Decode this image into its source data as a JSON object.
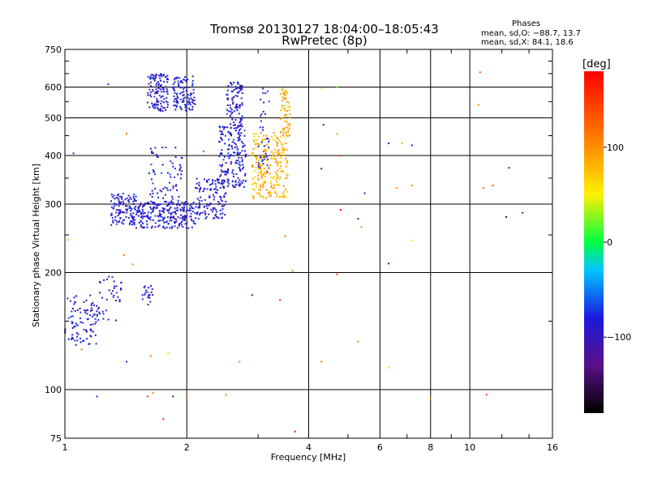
{
  "header": {
    "title_line1": "Tromsø 20130127 18:04:00–18:05:43",
    "title_line2": "RwPretec (8p)",
    "phases_heading": "Phases",
    "phases_o": "mean, sd,O: −88.7, 13.7",
    "phases_x": "mean, sd,X:  84.1, 18.6"
  },
  "chart_data": {
    "type": "scatter",
    "title": "Tromsø 20130127 18:04:00–18:05:43",
    "subtitle": "RwPretec (8p)",
    "xlabel": "Frequency [MHz]",
    "ylabel": "Stationary phase Virtual Height [km]",
    "xscale": "log",
    "yscale": "log",
    "xlim": [
      1,
      16
    ],
    "ylim": [
      75,
      750
    ],
    "xticks": [
      1,
      2,
      4,
      6,
      8,
      10,
      16
    ],
    "xtick_labels": [
      "1",
      "2",
      "4",
      "6",
      "8",
      "10",
      "16"
    ],
    "yticks": [
      75,
      100,
      200,
      300,
      400,
      500,
      600,
      750
    ],
    "ytick_labels": [
      "75",
      "100",
      "200",
      "300",
      "400",
      "500",
      "600",
      "750"
    ],
    "grid": true,
    "colorbar": {
      "label": "[deg]",
      "range": [
        -180,
        180
      ],
      "ticks": [
        100,
        0,
        -100
      ],
      "tick_labels": [
        "100",
        "0",
        "−100"
      ]
    },
    "series": [
      {
        "name": "O",
        "phase": -88.7,
        "color": "#1f4fe0",
        "clusters": [
          {
            "f": [
              1.0,
              1.2
            ],
            "h": [
              130,
              175
            ],
            "count": 90
          },
          {
            "f": [
              1.2,
              1.38
            ],
            "h": [
              150,
              200
            ],
            "count": 40
          },
          {
            "f": [
              1.3,
              1.5
            ],
            "h": [
              265,
              320
            ],
            "count": 120
          },
          {
            "f": [
              1.5,
              2.1
            ],
            "h": [
              260,
              305
            ],
            "count": 240
          },
          {
            "f": [
              2.1,
              2.5
            ],
            "h": [
              275,
              350
            ],
            "count": 130
          },
          {
            "f": [
              2.4,
              2.8
            ],
            "h": [
              330,
              480
            ],
            "count": 180
          },
          {
            "f": [
              2.5,
              2.75
            ],
            "h": [
              470,
              620
            ],
            "count": 90
          },
          {
            "f": [
              1.6,
              1.8
            ],
            "h": [
              520,
              650
            ],
            "count": 120
          },
          {
            "f": [
              1.85,
              2.1
            ],
            "h": [
              520,
              640
            ],
            "count": 110
          },
          {
            "f": [
              1.6,
              1.95
            ],
            "h": [
              300,
              420
            ],
            "count": 70
          },
          {
            "f": [
              1.55,
              1.65
            ],
            "h": [
              165,
              185
            ],
            "count": 20
          },
          {
            "f": [
              3.0,
              3.2
            ],
            "h": [
              360,
              600
            ],
            "count": 40
          }
        ]
      },
      {
        "name": "X",
        "phase": 84.1,
        "color": "#d8e000",
        "clusters": [
          {
            "f": [
              2.9,
              3.55
            ],
            "h": [
              310,
              460
            ],
            "count": 230
          },
          {
            "f": [
              3.4,
              3.6
            ],
            "h": [
              450,
              600
            ],
            "count": 60
          }
        ]
      }
    ],
    "scattered_points": [
      {
        "f": 1.28,
        "h": 610,
        "phase": -100
      },
      {
        "f": 1.05,
        "h": 405,
        "phase": -100
      },
      {
        "f": 1.42,
        "h": 455,
        "phase": 120
      },
      {
        "f": 2.2,
        "h": 410,
        "phase": 140
      },
      {
        "f": 4.3,
        "h": 595,
        "phase": 40
      },
      {
        "f": 4.7,
        "h": 600,
        "phase": 20
      },
      {
        "f": 4.35,
        "h": 480,
        "phase": -100
      },
      {
        "f": 4.7,
        "h": 455,
        "phase": 20
      },
      {
        "f": 4.8,
        "h": 400,
        "phase": 140
      },
      {
        "f": 4.3,
        "h": 370,
        "phase": -110
      },
      {
        "f": 6.3,
        "h": 430,
        "phase": -100
      },
      {
        "f": 6.8,
        "h": 430,
        "phase": 20
      },
      {
        "f": 7.2,
        "h": 425,
        "phase": -100
      },
      {
        "f": 5.5,
        "h": 320,
        "phase": -100
      },
      {
        "f": 6.6,
        "h": 330,
        "phase": 100
      },
      {
        "f": 7.2,
        "h": 335,
        "phase": 100
      },
      {
        "f": 4.8,
        "h": 290,
        "phase": 170
      },
      {
        "f": 5.3,
        "h": 275,
        "phase": -100
      },
      {
        "f": 5.4,
        "h": 262,
        "phase": 100
      },
      {
        "f": 7.2,
        "h": 242,
        "phase": 40
      },
      {
        "f": 6.3,
        "h": 211,
        "phase": -130
      },
      {
        "f": 4.7,
        "h": 198,
        "phase": 140
      },
      {
        "f": 3.5,
        "h": 248,
        "phase": 120
      },
      {
        "f": 3.65,
        "h": 202,
        "phase": 110
      },
      {
        "f": 2.9,
        "h": 175,
        "phase": -120
      },
      {
        "f": 3.4,
        "h": 170,
        "phase": 160
      },
      {
        "f": 5.3,
        "h": 133,
        "phase": 110
      },
      {
        "f": 6.3,
        "h": 114,
        "phase": 40
      },
      {
        "f": 4.3,
        "h": 118,
        "phase": 110
      },
      {
        "f": 2.7,
        "h": 118,
        "phase": 110
      },
      {
        "f": 1.42,
        "h": 118,
        "phase": -110
      },
      {
        "f": 1.1,
        "h": 127,
        "phase": 110
      },
      {
        "f": 1.63,
        "h": 122,
        "phase": 110
      },
      {
        "f": 1.8,
        "h": 124,
        "phase": 40
      },
      {
        "f": 1.6,
        "h": 96,
        "phase": 160
      },
      {
        "f": 1.65,
        "h": 98,
        "phase": 110
      },
      {
        "f": 1.85,
        "h": 96,
        "phase": -140
      },
      {
        "f": 2.0,
        "h": 97,
        "phase": 120
      },
      {
        "f": 2.5,
        "h": 97,
        "phase": 110
      },
      {
        "f": 1.2,
        "h": 96,
        "phase": -100
      },
      {
        "f": 1.75,
        "h": 84,
        "phase": 170
      },
      {
        "f": 3.7,
        "h": 78,
        "phase": 170
      },
      {
        "f": 8.0,
        "h": 95,
        "phase": 90
      },
      {
        "f": 11.0,
        "h": 97,
        "phase": 150
      },
      {
        "f": 10.6,
        "h": 655,
        "phase": 130
      },
      {
        "f": 10.5,
        "h": 540,
        "phase": 110
      },
      {
        "f": 12.5,
        "h": 372,
        "phase": -100
      },
      {
        "f": 13.5,
        "h": 285,
        "phase": -130
      },
      {
        "f": 12.3,
        "h": 278,
        "phase": -150
      },
      {
        "f": 10.8,
        "h": 330,
        "phase": 120
      },
      {
        "f": 11.4,
        "h": 335,
        "phase": 130
      },
      {
        "f": 1.02,
        "h": 243,
        "phase": 80
      },
      {
        "f": 1.4,
        "h": 222,
        "phase": 110
      },
      {
        "f": 1.47,
        "h": 210,
        "phase": 100
      }
    ]
  }
}
